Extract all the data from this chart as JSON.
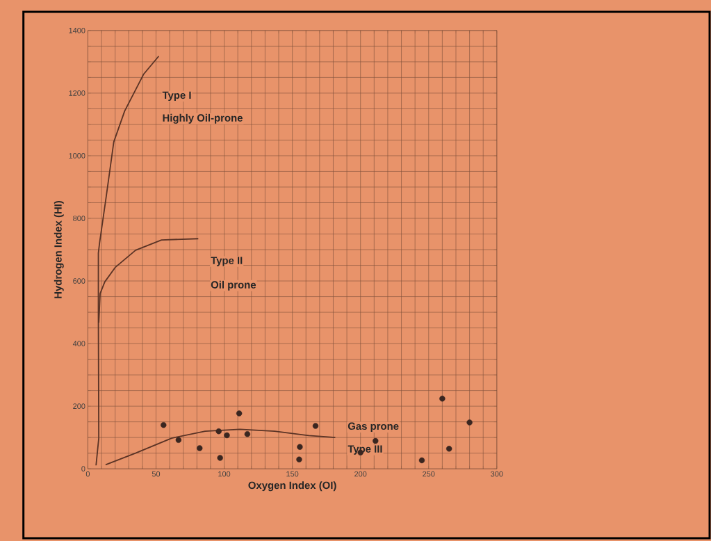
{
  "chart_data": {
    "type": "scatter",
    "xlabel": "Oxygen Index (OI)",
    "ylabel": "Hydrogen Index (HI)",
    "xlim": [
      0,
      300
    ],
    "ylim": [
      0,
      1400
    ],
    "xticks": [
      0,
      {
        "value": 10,
        "label": null
      },
      {
        "value": 20,
        "label": null
      },
      {
        "value": 30,
        "label": null
      },
      {
        "value": 40,
        "label": null
      },
      50,
      {
        "value": 60,
        "label": null
      },
      {
        "value": 70,
        "label": null
      },
      {
        "value": 80,
        "label": null
      },
      {
        "value": 90,
        "label": null
      },
      100,
      {
        "value": 110,
        "label": null
      },
      {
        "value": 120,
        "label": null
      },
      {
        "value": 130,
        "label": null
      },
      {
        "value": 140,
        "label": null
      },
      150,
      {
        "value": 160,
        "label": null
      },
      {
        "value": 170,
        "label": null
      },
      {
        "value": 180,
        "label": null
      },
      {
        "value": 190,
        "label": null
      },
      200,
      {
        "value": 210,
        "label": null
      },
      {
        "value": 220,
        "label": null
      },
      {
        "value": 230,
        "label": null
      },
      {
        "value": 240,
        "label": null
      },
      250,
      {
        "value": 260,
        "label": null
      },
      {
        "value": 270,
        "label": null
      },
      {
        "value": 280,
        "label": null
      },
      {
        "value": 290,
        "label": null
      },
      300
    ],
    "yticks": [
      0,
      {
        "value": 50,
        "label": null
      },
      {
        "value": 100,
        "label": null
      },
      {
        "value": 150,
        "label": null
      },
      200,
      {
        "value": 250,
        "label": null
      },
      {
        "value": 300,
        "label": null
      },
      {
        "value": 350,
        "label": null
      },
      400,
      {
        "value": 450,
        "label": null
      },
      {
        "value": 500,
        "label": null
      },
      {
        "value": 550,
        "label": null
      },
      600,
      {
        "value": 650,
        "label": null
      },
      {
        "value": 700,
        "label": null
      },
      {
        "value": 750,
        "label": null
      },
      800,
      {
        "value": 850,
        "label": null
      },
      {
        "value": 900,
        "label": null
      },
      {
        "value": 950,
        "label": null
      },
      1000,
      {
        "value": 1050,
        "label": null
      },
      {
        "value": 1100,
        "label": null
      },
      {
        "value": 1150,
        "label": null
      },
      1200,
      {
        "value": 1250,
        "label": null
      },
      {
        "value": 1300,
        "label": null
      },
      {
        "value": 1350,
        "label": null
      },
      1400
    ],
    "grid": true,
    "series": [
      {
        "type": "line",
        "color": "#5a3325",
        "x": [
          6,
          8,
          7.7,
          7.7,
          8.6,
          13,
          19,
          27,
          41,
          52
        ],
        "values": [
          11,
          98,
          486,
          689,
          722,
          855,
          1044,
          1143,
          1261,
          1318
        ]
      },
      {
        "type": "line",
        "color": "#5a3325",
        "x": [
          8,
          9,
          12.4,
          20,
          35,
          54,
          81
        ],
        "values": [
          467,
          560,
          597,
          643,
          698,
          731,
          735
        ]
      },
      {
        "type": "line",
        "color": "#5a3325",
        "x": [
          13,
          35,
          61.5,
          86,
          111.5,
          137,
          162,
          181.5
        ],
        "values": [
          13,
          50,
          98,
          120,
          126,
          120,
          106,
          100
        ]
      },
      {
        "color": "#3a2620",
        "marker": "circle",
        "x": [
          55.5,
          66.5,
          82,
          96,
          97,
          102,
          111,
          117,
          155.5,
          155,
          167,
          200,
          211,
          245,
          260,
          265,
          280
        ],
        "values": [
          140,
          92,
          66,
          120,
          35,
          107,
          177,
          111,
          70,
          30,
          137,
          52,
          89,
          27,
          224,
          64,
          148
        ]
      }
    ],
    "annotations": [
      "Type I",
      "Highly Oil-prone",
      "Type II",
      "Oil prone",
      "Gas prone",
      "Type III"
    ]
  }
}
